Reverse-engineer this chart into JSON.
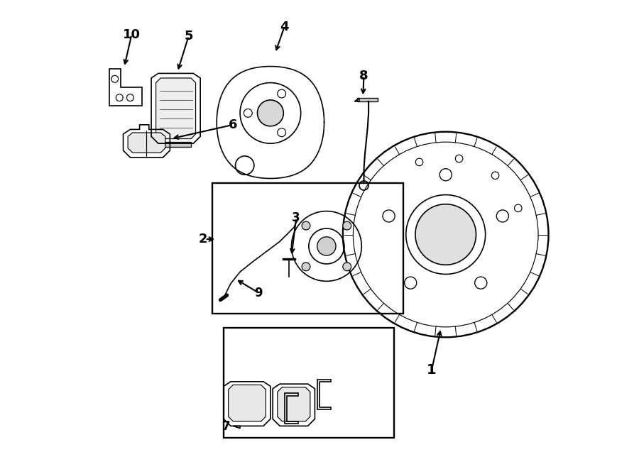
{
  "bg_color": "#ffffff",
  "line_color": "#000000",
  "line_width": 1.2,
  "fig_width": 9.0,
  "fig_height": 6.61,
  "dpi": 100
}
